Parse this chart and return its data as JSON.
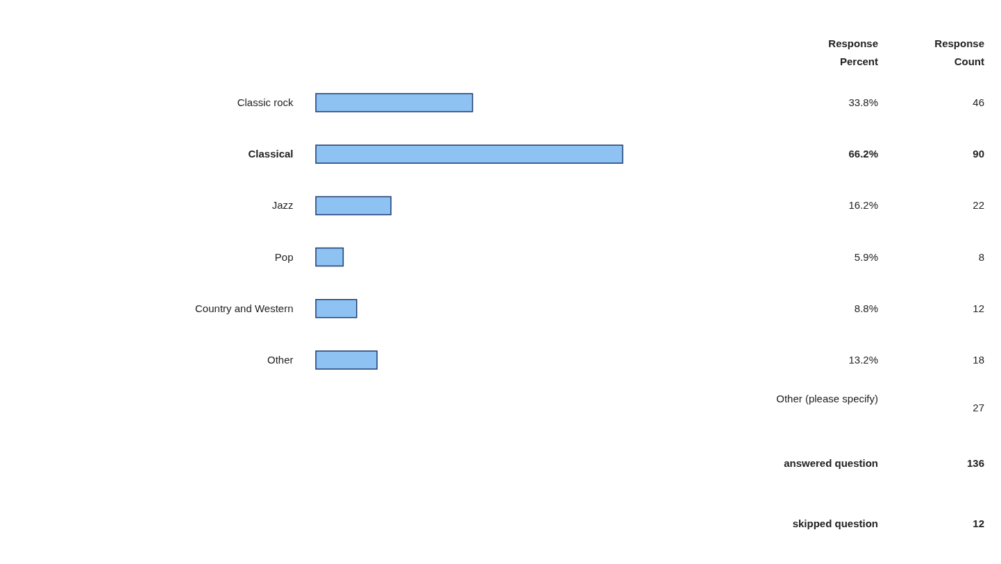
{
  "chart_data": {
    "type": "bar",
    "orientation": "horizontal",
    "categories": [
      "Classic rock",
      "Classical",
      "Jazz",
      "Pop",
      "Country and Western",
      "Other"
    ],
    "values": [
      33.8,
      66.2,
      16.2,
      5.9,
      8.8,
      13.2
    ],
    "value_labels": [
      "33.8%",
      "66.2%",
      "16.2%",
      "5.9%",
      "8.8%",
      "13.2%"
    ],
    "color": "#8ec2f2",
    "annotations": [
      "Response Percent",
      "Response Count",
      "46",
      "90",
      "22",
      "8",
      "12",
      "18",
      "Other (please specify)",
      "27",
      "answered question",
      "136",
      "skipped question",
      "12"
    ]
  }
}
